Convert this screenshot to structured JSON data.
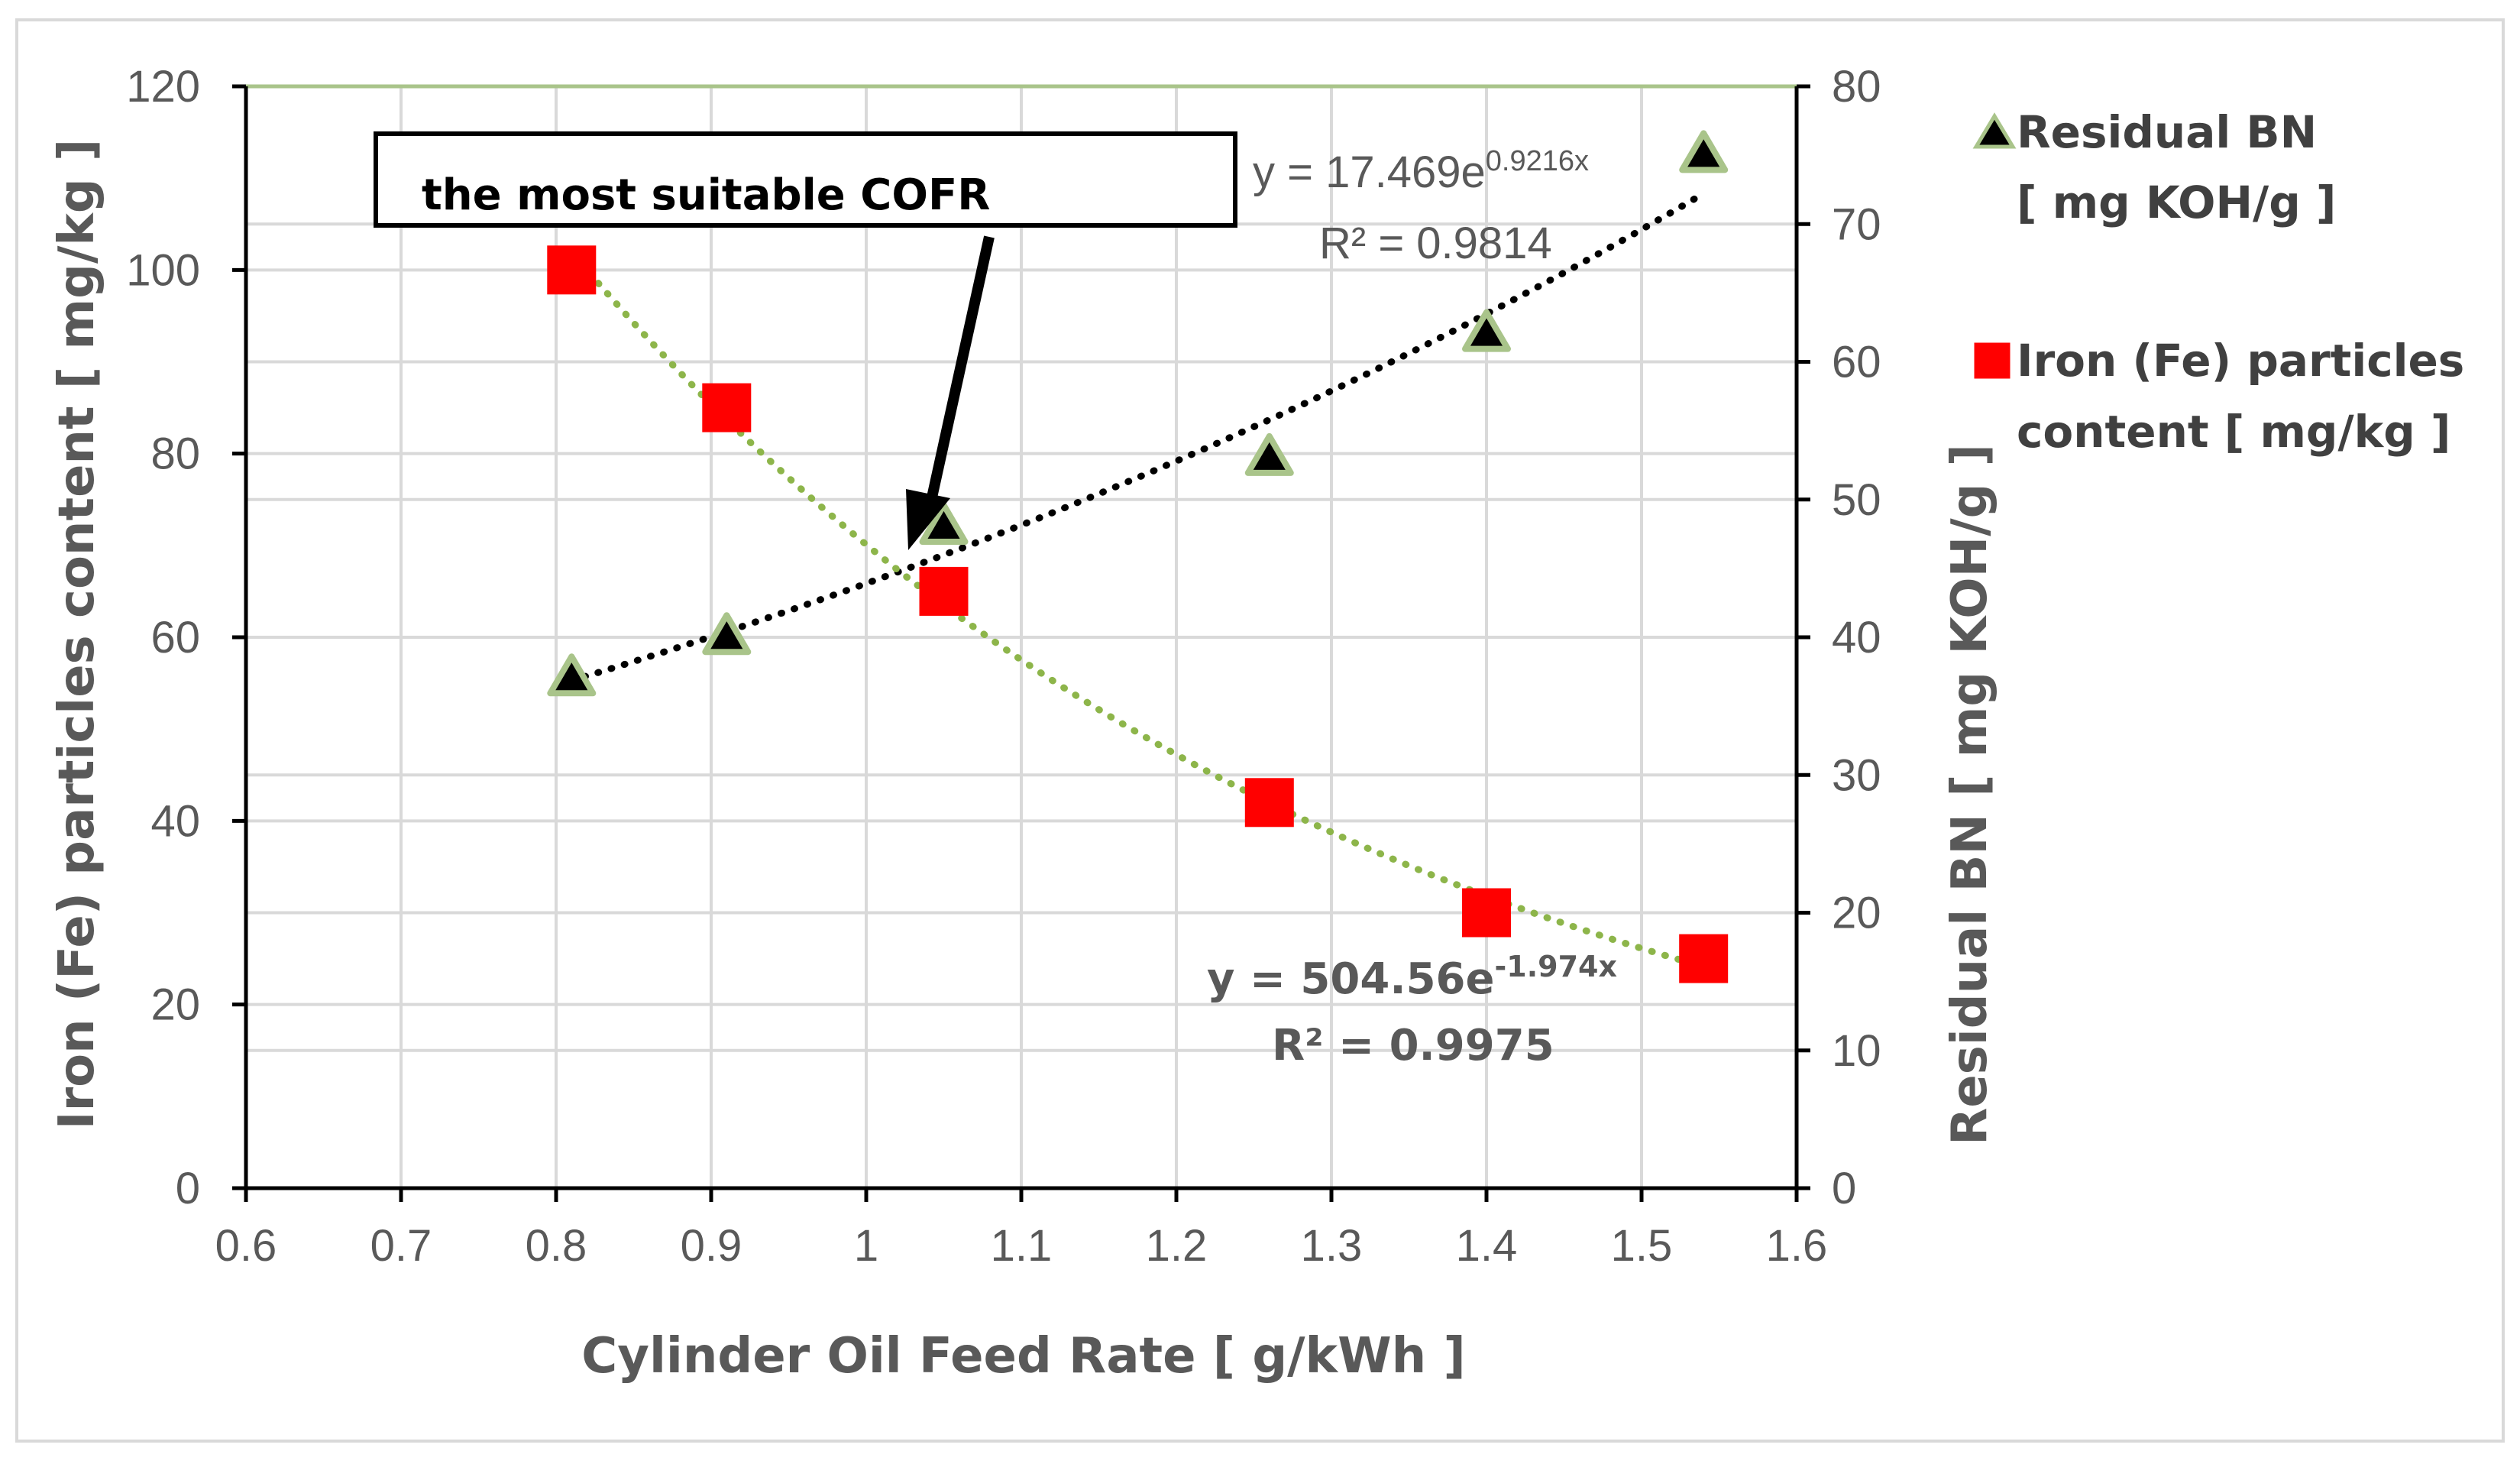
{
  "chart_data": {
    "type": "scatter",
    "x_axis": {
      "title": "Cylinder Oil Feed Rate  [ g/kWh ]",
      "range": [
        0.6,
        1.6
      ],
      "ticks": [
        "0.6",
        "0.7",
        "0.8",
        "0.9",
        "1",
        "1.1",
        "1.2",
        "1.3",
        "1.4",
        "1.5",
        "1.6"
      ]
    },
    "y_left_axis": {
      "title": "Iron (Fe) particles content [ mg/kg ]",
      "range": [
        0,
        120
      ],
      "ticks": [
        "0",
        "20",
        "40",
        "60",
        "80",
        "100",
        "120"
      ]
    },
    "y_right_axis": {
      "title": "Residual BN [ mg KOH/g ]",
      "range": [
        0,
        80
      ],
      "ticks": [
        "0",
        "10",
        "20",
        "30",
        "40",
        "50",
        "60",
        "70",
        "80"
      ]
    },
    "grid": true,
    "series": [
      {
        "name_line1": "Residual BN",
        "name_line2": "[ mg KOH/g ]",
        "axis": "right",
        "marker": "triangle",
        "marker_color": "#000000",
        "marker_edge": "#a9c48a",
        "x": [
          0.81,
          0.91,
          1.05,
          1.26,
          1.4,
          1.54
        ],
        "y": [
          37,
          40,
          48,
          53,
          62,
          75
        ],
        "trendline": {
          "type": "exponential",
          "a": 17.469,
          "b": 0.9216,
          "color": "#000000",
          "eq_main": "y = 17.469e",
          "eq_exp": "0.9216x",
          "r2": "R² = 0.9814"
        }
      },
      {
        "name_line1": "Iron (Fe) particles",
        "name_line2": "content  [ mg/kg ]",
        "axis": "left",
        "marker": "square",
        "marker_color": "#ff0000",
        "x": [
          0.81,
          0.91,
          1.05,
          1.26,
          1.4,
          1.54
        ],
        "y": [
          100,
          85,
          65,
          42,
          30,
          25
        ],
        "trendline": {
          "type": "exponential",
          "a": 504.56,
          "b": -1.974,
          "color": "#8db54a",
          "eq_main": "y = 504.56e",
          "eq_exp": "-1.974x",
          "r2": "R² = 0.9975"
        }
      }
    ],
    "annotation": {
      "text": "the most suitable COFR",
      "points_to_x": 1.03
    }
  }
}
